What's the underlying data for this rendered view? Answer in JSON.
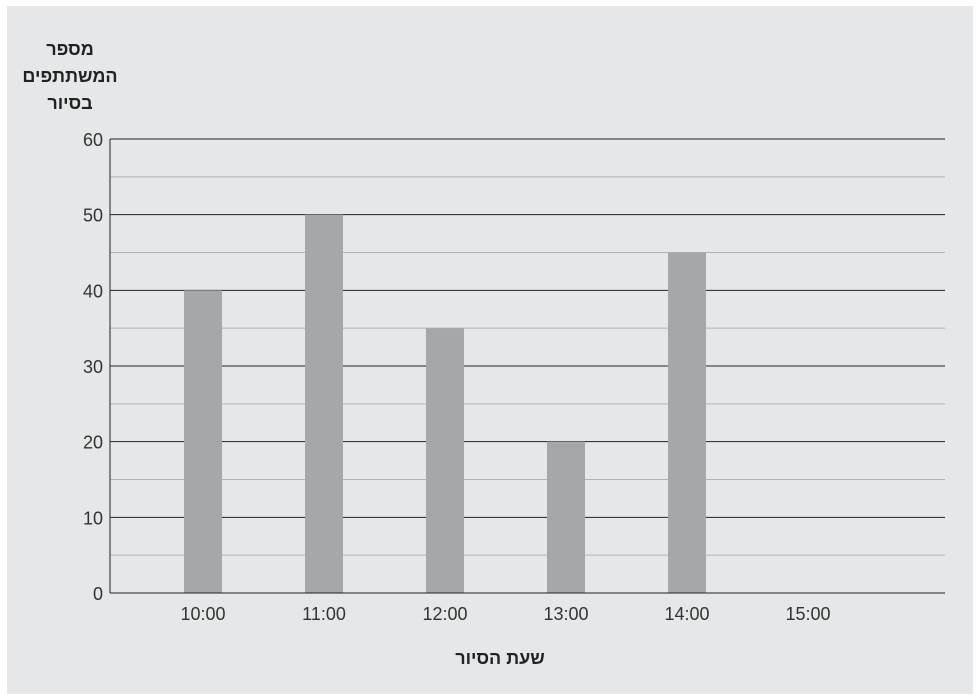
{
  "chart_data": {
    "type": "bar",
    "title": "",
    "ylabel": "מספר\nהמשתתפים\nבסיור",
    "xlabel": "שעת הסיור",
    "categories": [
      "10:00",
      "11:00",
      "12:00",
      "13:00",
      "14:00",
      "15:00"
    ],
    "values": [
      40,
      50,
      35,
      20,
      45,
      0
    ],
    "ylim": [
      0,
      60
    ],
    "yticks": [
      0,
      10,
      20,
      30,
      40,
      50,
      60
    ],
    "grid": true,
    "legend": "none",
    "colors": {
      "bar": "#a6a7a9",
      "major_grid": "#222222",
      "minor_grid": "#b0b2b5",
      "background": "#e6e7e8"
    }
  }
}
